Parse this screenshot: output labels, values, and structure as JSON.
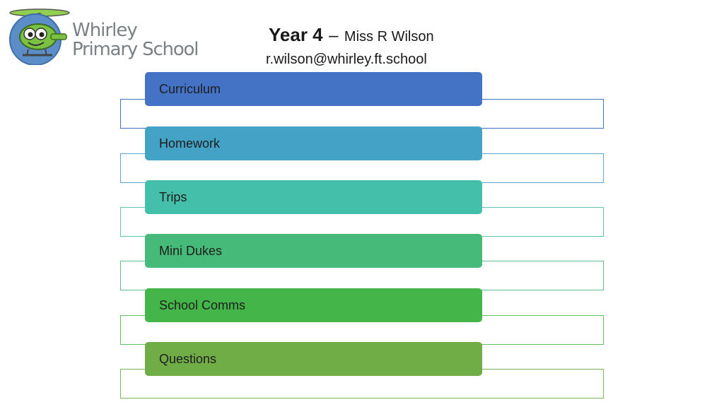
{
  "logo": {
    "line1": "Whirley",
    "line2": "Primary School",
    "icon": "helicopter-mascot-icon"
  },
  "header": {
    "title": "Year 4",
    "dash": "–",
    "teacher": "Miss R Wilson",
    "email": "r.wilson@whirley.ft.school"
  },
  "menu": {
    "items": [
      {
        "label": "Curriculum",
        "color": "#4472C4",
        "outline": "#4472C4"
      },
      {
        "label": "Homework",
        "color": "#44A2C7",
        "outline": "#5AA8CE"
      },
      {
        "label": "Trips",
        "color": "#43BFAA",
        "outline": "#5EC4B4"
      },
      {
        "label": "Mini Dukes",
        "color": "#45BA79",
        "outline": "#5EC08B"
      },
      {
        "label": "School Comms",
        "color": "#44B649",
        "outline": "#5DBF62"
      },
      {
        "label": "Questions",
        "color": "#70AD47",
        "outline": "#7DB55A"
      }
    ]
  }
}
